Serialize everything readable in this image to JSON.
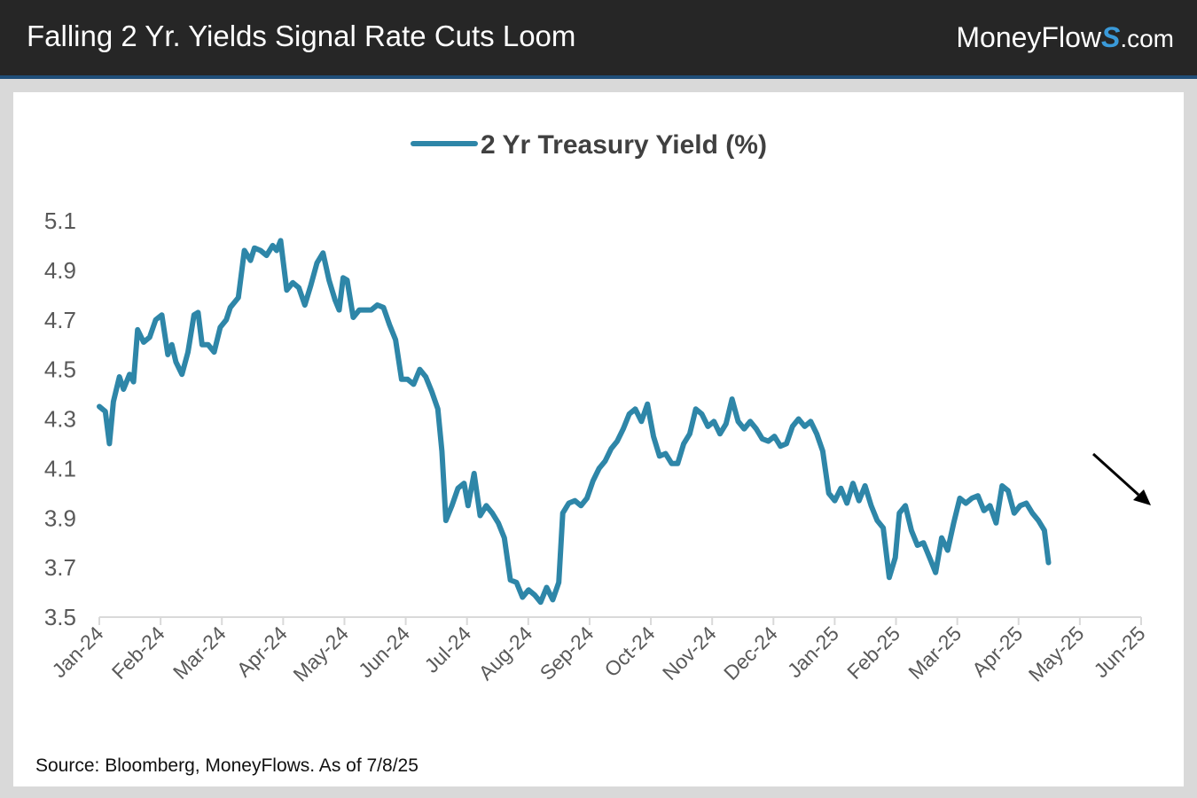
{
  "header": {
    "title": "Falling 2 Yr. Yields Signal Rate Cuts Loom",
    "brand_main": "MoneyFlow",
    "brand_mark": "S",
    "brand_domain": ".com"
  },
  "source_note": "Source: Bloomberg, MoneyFlows. As of 7/8/25",
  "colors": {
    "series": "#2e86a8",
    "header_bg": "#262626",
    "header_rule": "#1f4e79",
    "axis": "#d9d9d9",
    "tick_text": "#595959"
  },
  "chart_data": {
    "type": "line",
    "legend_position": "top-center",
    "grid": false,
    "x_range": [
      "2024-01-01",
      "2025-06-01"
    ],
    "ylim": [
      3.5,
      5.1
    ],
    "y_ticks": [
      "3.5",
      "3.7",
      "3.9",
      "4.1",
      "4.3",
      "4.5",
      "4.7",
      "4.9",
      "5.1"
    ],
    "x_ticks": [
      "Jan-24",
      "Feb-24",
      "Mar-24",
      "Apr-24",
      "May-24",
      "Jun-24",
      "Jul-24",
      "Aug-24",
      "Sep-24",
      "Oct-24",
      "Nov-24",
      "Dec-24",
      "Jan-25",
      "Feb-25",
      "Mar-25",
      "Apr-25",
      "May-25",
      "Jun-25"
    ],
    "annotation": "downward-arrow",
    "series": [
      {
        "name": "2 Yr Treasury Yield (%)",
        "points": [
          [
            "2024-01-01",
            4.35
          ],
          [
            "2024-01-04",
            4.33
          ],
          [
            "2024-01-06",
            4.2
          ],
          [
            "2024-01-08",
            4.37
          ],
          [
            "2024-01-11",
            4.47
          ],
          [
            "2024-01-13",
            4.42
          ],
          [
            "2024-01-16",
            4.48
          ],
          [
            "2024-01-18",
            4.45
          ],
          [
            "2024-01-20",
            4.66
          ],
          [
            "2024-01-23",
            4.61
          ],
          [
            "2024-01-26",
            4.63
          ],
          [
            "2024-01-29",
            4.7
          ],
          [
            "2024-02-01",
            4.72
          ],
          [
            "2024-02-04",
            4.56
          ],
          [
            "2024-02-06",
            4.6
          ],
          [
            "2024-02-08",
            4.53
          ],
          [
            "2024-02-11",
            4.48
          ],
          [
            "2024-02-14",
            4.57
          ],
          [
            "2024-02-17",
            4.72
          ],
          [
            "2024-02-19",
            4.73
          ],
          [
            "2024-02-21",
            4.6
          ],
          [
            "2024-02-24",
            4.6
          ],
          [
            "2024-02-27",
            4.57
          ],
          [
            "2024-03-01",
            4.67
          ],
          [
            "2024-03-04",
            4.7
          ],
          [
            "2024-03-06",
            4.75
          ],
          [
            "2024-03-10",
            4.79
          ],
          [
            "2024-03-13",
            4.98
          ],
          [
            "2024-03-16",
            4.94
          ],
          [
            "2024-03-18",
            4.99
          ],
          [
            "2024-03-21",
            4.98
          ],
          [
            "2024-03-24",
            4.96
          ],
          [
            "2024-03-27",
            5.0
          ],
          [
            "2024-03-29",
            4.98
          ],
          [
            "2024-03-31",
            5.02
          ],
          [
            "2024-04-03",
            4.82
          ],
          [
            "2024-04-06",
            4.85
          ],
          [
            "2024-04-09",
            4.83
          ],
          [
            "2024-04-12",
            4.76
          ],
          [
            "2024-04-15",
            4.84
          ],
          [
            "2024-04-18",
            4.93
          ],
          [
            "2024-04-21",
            4.97
          ],
          [
            "2024-04-24",
            4.86
          ],
          [
            "2024-04-27",
            4.78
          ],
          [
            "2024-04-29",
            4.74
          ],
          [
            "2024-05-01",
            4.87
          ],
          [
            "2024-05-03",
            4.86
          ],
          [
            "2024-05-06",
            4.71
          ],
          [
            "2024-05-09",
            4.74
          ],
          [
            "2024-05-12",
            4.74
          ],
          [
            "2024-05-15",
            4.74
          ],
          [
            "2024-05-18",
            4.76
          ],
          [
            "2024-05-21",
            4.75
          ],
          [
            "2024-05-24",
            4.68
          ],
          [
            "2024-05-27",
            4.62
          ],
          [
            "2024-05-30",
            4.46
          ],
          [
            "2024-06-02",
            4.46
          ],
          [
            "2024-06-05",
            4.44
          ],
          [
            "2024-06-08",
            4.5
          ],
          [
            "2024-06-11",
            4.47
          ],
          [
            "2024-06-14",
            4.41
          ],
          [
            "2024-06-17",
            4.34
          ],
          [
            "2024-06-19",
            4.17
          ],
          [
            "2024-06-21",
            3.89
          ],
          [
            "2024-06-24",
            3.95
          ],
          [
            "2024-06-27",
            4.02
          ],
          [
            "2024-06-30",
            4.04
          ],
          [
            "2024-07-02",
            3.95
          ],
          [
            "2024-07-05",
            4.08
          ],
          [
            "2024-07-08",
            3.91
          ],
          [
            "2024-07-11",
            3.95
          ],
          [
            "2024-07-14",
            3.92
          ],
          [
            "2024-07-17",
            3.88
          ],
          [
            "2024-07-20",
            3.82
          ],
          [
            "2024-07-23",
            3.65
          ],
          [
            "2024-07-26",
            3.64
          ],
          [
            "2024-07-29",
            3.58
          ],
          [
            "2024-08-01",
            3.61
          ],
          [
            "2024-08-04",
            3.59
          ],
          [
            "2024-08-07",
            3.56
          ],
          [
            "2024-08-10",
            3.62
          ],
          [
            "2024-08-13",
            3.57
          ],
          [
            "2024-08-16",
            3.64
          ],
          [
            "2024-08-18",
            3.92
          ],
          [
            "2024-08-21",
            3.96
          ],
          [
            "2024-08-24",
            3.97
          ],
          [
            "2024-08-27",
            3.95
          ],
          [
            "2024-08-30",
            3.98
          ],
          [
            "2024-09-02",
            4.05
          ],
          [
            "2024-09-05",
            4.1
          ],
          [
            "2024-09-08",
            4.13
          ],
          [
            "2024-09-11",
            4.18
          ],
          [
            "2024-09-14",
            4.21
          ],
          [
            "2024-09-17",
            4.26
          ],
          [
            "2024-09-20",
            4.32
          ],
          [
            "2024-09-23",
            4.34
          ],
          [
            "2024-09-26",
            4.29
          ],
          [
            "2024-09-29",
            4.36
          ],
          [
            "2024-10-02",
            4.23
          ],
          [
            "2024-10-05",
            4.15
          ],
          [
            "2024-10-08",
            4.16
          ],
          [
            "2024-10-11",
            4.12
          ],
          [
            "2024-10-14",
            4.12
          ],
          [
            "2024-10-17",
            4.2
          ],
          [
            "2024-10-20",
            4.24
          ],
          [
            "2024-10-23",
            4.34
          ],
          [
            "2024-10-26",
            4.32
          ],
          [
            "2024-10-29",
            4.27
          ],
          [
            "2024-11-01",
            4.29
          ],
          [
            "2024-11-04",
            4.24
          ],
          [
            "2024-11-07",
            4.28
          ],
          [
            "2024-11-10",
            4.38
          ],
          [
            "2024-11-13",
            4.29
          ],
          [
            "2024-11-16",
            4.26
          ],
          [
            "2024-11-19",
            4.29
          ],
          [
            "2024-11-22",
            4.26
          ],
          [
            "2024-11-25",
            4.22
          ],
          [
            "2024-11-28",
            4.21
          ],
          [
            "2024-12-01",
            4.23
          ],
          [
            "2024-12-04",
            4.19
          ],
          [
            "2024-12-07",
            4.2
          ],
          [
            "2024-12-10",
            4.27
          ],
          [
            "2024-12-13",
            4.3
          ],
          [
            "2024-12-16",
            4.27
          ],
          [
            "2024-12-19",
            4.29
          ],
          [
            "2024-12-22",
            4.24
          ],
          [
            "2024-12-25",
            4.17
          ],
          [
            "2024-12-28",
            4.0
          ],
          [
            "2024-12-31",
            3.97
          ],
          [
            "2025-01-03",
            4.02
          ],
          [
            "2025-01-06",
            3.96
          ],
          [
            "2025-01-09",
            4.04
          ],
          [
            "2025-01-12",
            3.97
          ],
          [
            "2025-01-15",
            4.03
          ],
          [
            "2025-01-18",
            3.95
          ],
          [
            "2025-01-21",
            3.89
          ],
          [
            "2025-01-24",
            3.86
          ],
          [
            "2025-01-27",
            3.66
          ],
          [
            "2025-01-30",
            3.74
          ],
          [
            "2025-02-01",
            3.92
          ],
          [
            "2025-02-04",
            3.95
          ],
          [
            "2025-02-07",
            3.85
          ],
          [
            "2025-02-10",
            3.79
          ],
          [
            "2025-02-13",
            3.8
          ],
          [
            "2025-02-16",
            3.74
          ],
          [
            "2025-02-19",
            3.68
          ],
          [
            "2025-02-22",
            3.82
          ],
          [
            "2025-02-25",
            3.77
          ],
          [
            "2025-02-28",
            3.88
          ],
          [
            "2025-03-03",
            3.98
          ],
          [
            "2025-03-06",
            3.96
          ],
          [
            "2025-03-09",
            3.98
          ],
          [
            "2025-03-12",
            3.99
          ],
          [
            "2025-03-15",
            3.93
          ],
          [
            "2025-03-18",
            3.95
          ],
          [
            "2025-03-21",
            3.88
          ],
          [
            "2025-03-24",
            4.03
          ],
          [
            "2025-03-27",
            4.01
          ],
          [
            "2025-03-30",
            3.92
          ],
          [
            "2025-04-02",
            3.95
          ],
          [
            "2025-04-05",
            3.96
          ],
          [
            "2025-04-08",
            3.92
          ],
          [
            "2025-04-11",
            3.89
          ],
          [
            "2025-04-14",
            3.85
          ],
          [
            "2025-04-16",
            3.72
          ]
        ]
      }
    ]
  }
}
